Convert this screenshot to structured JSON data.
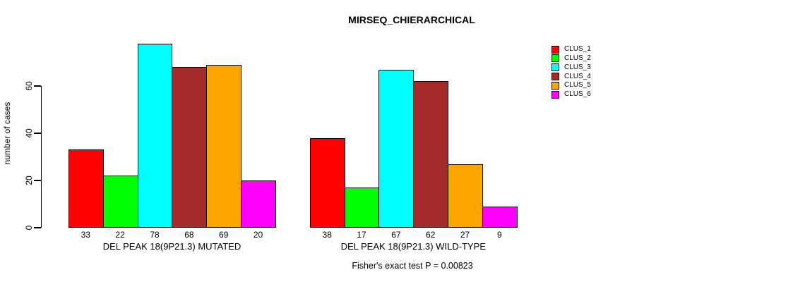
{
  "chart_data": {
    "type": "bar",
    "title": "MIRSEQ_CHIERARCHICAL",
    "ylabel": "number of cases",
    "xlabel": "",
    "ylim": [
      0,
      80
    ],
    "yticks": [
      0,
      20,
      40,
      60
    ],
    "grid": false,
    "legend_position": "right",
    "legend": [
      {
        "label": "CLUS_1",
        "color": "#FF0000"
      },
      {
        "label": "CLUS_2",
        "color": "#00FF00"
      },
      {
        "label": "CLUS_3",
        "color": "#00FFFF"
      },
      {
        "label": "CLUS_4",
        "color": "#A52A2A"
      },
      {
        "label": "CLUS_5",
        "color": "#FFA500"
      },
      {
        "label": "CLUS_6",
        "color": "#FF00FF"
      }
    ],
    "groups": [
      {
        "label": "DEL PEAK 18(9P21.3) MUTATED",
        "values": [
          33,
          22,
          78,
          68,
          69,
          20
        ]
      },
      {
        "label": "DEL PEAK 18(9P21.3) WILD-TYPE",
        "values": [
          38,
          17,
          67,
          62,
          27,
          9
        ]
      }
    ],
    "annotation": "Fisher's exact test P = 0.00823"
  }
}
